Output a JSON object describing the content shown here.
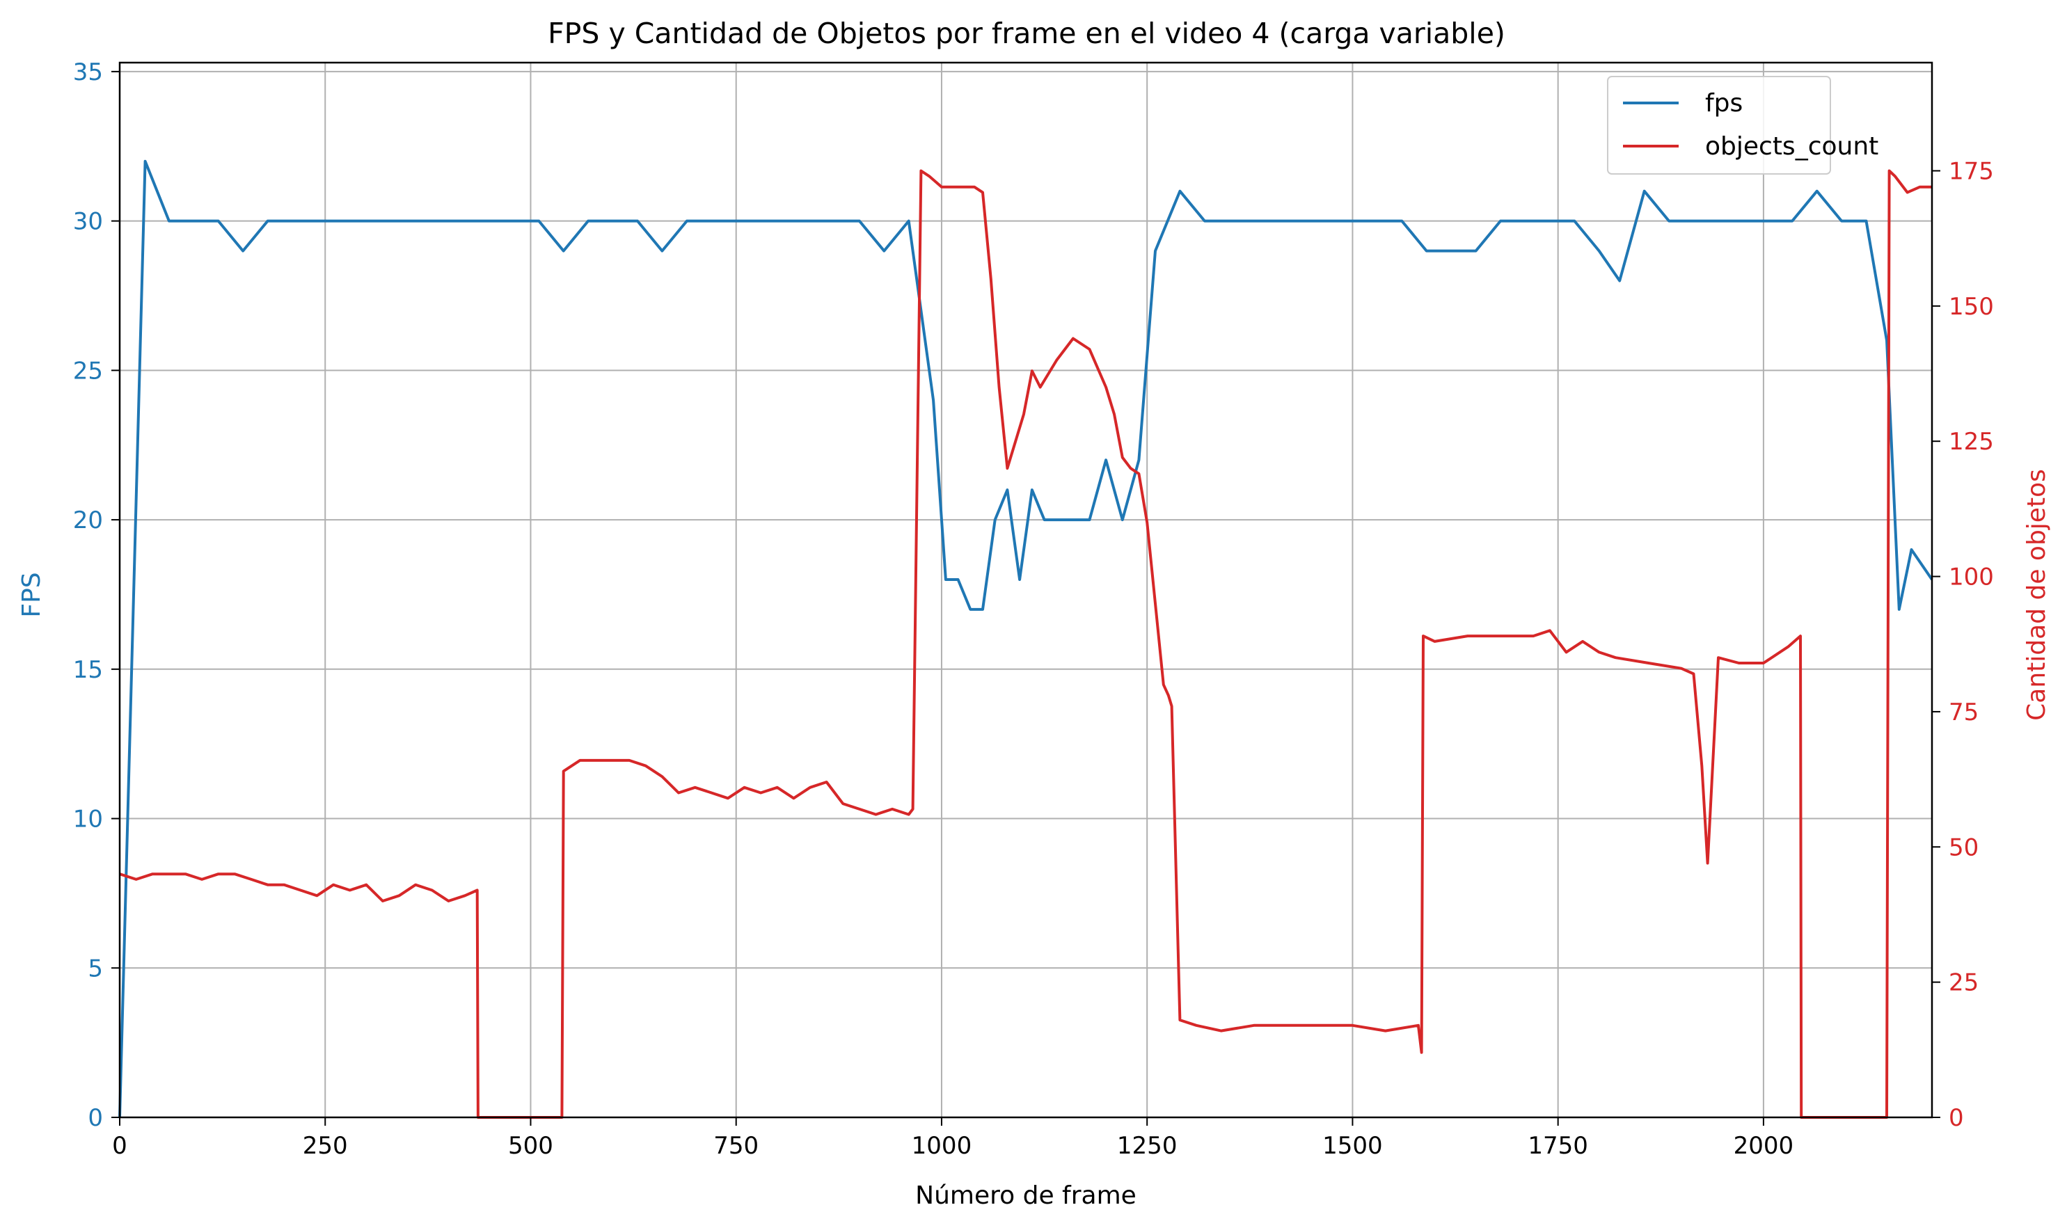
{
  "chart_data": {
    "type": "line",
    "title": "FPS y Cantidad de Objetos por frame en el video 4 (carga variable)",
    "xlabel": "Número de frame",
    "ylabel_left": "FPS",
    "ylabel_right": "Cantidad de objetos",
    "xlim": [
      0,
      2205
    ],
    "ylim_left": [
      0,
      35.3
    ],
    "ylim_right": [
      0,
      195
    ],
    "xticks": [
      "0",
      "250",
      "500",
      "750",
      "1000",
      "1250",
      "1500",
      "1750",
      "2000"
    ],
    "yticks_left": [
      "0",
      "5",
      "10",
      "15",
      "20",
      "25",
      "30",
      "35"
    ],
    "yticks_right": [
      "0",
      "25",
      "50",
      "75",
      "100",
      "125",
      "150",
      "175"
    ],
    "grid": true,
    "legend_position": "top-right",
    "colors": {
      "fps": "#1f77b4",
      "objects_count": "#d62728",
      "grid": "#b0b0b0",
      "axes": "#000000"
    },
    "series": [
      {
        "name": "fps",
        "axis": "left",
        "x": [
          0,
          31,
          60,
          90,
          120,
          150,
          180,
          210,
          240,
          270,
          300,
          330,
          360,
          390,
          420,
          450,
          480,
          510,
          540,
          570,
          600,
          630,
          660,
          690,
          720,
          750,
          780,
          810,
          840,
          870,
          900,
          930,
          960,
          990,
          1005,
          1020,
          1035,
          1050,
          1065,
          1080,
          1095,
          1110,
          1125,
          1140,
          1160,
          1180,
          1200,
          1220,
          1240,
          1260,
          1290,
          1320,
          1350,
          1380,
          1410,
          1440,
          1470,
          1500,
          1530,
          1560,
          1590,
          1620,
          1650,
          1680,
          1710,
          1740,
          1770,
          1800,
          1825,
          1855,
          1885,
          1915,
          1945,
          1975,
          2005,
          2035,
          2065,
          2095,
          2125,
          2150,
          2165,
          2180,
          2205
        ],
        "values": [
          0,
          32,
          30,
          30,
          30,
          29,
          30,
          30,
          30,
          30,
          30,
          30,
          30,
          30,
          30,
          30,
          30,
          30,
          29,
          30,
          30,
          30,
          29,
          30,
          30,
          30,
          30,
          30,
          30,
          30,
          30,
          29,
          30,
          24,
          18,
          18,
          17,
          17,
          20,
          21,
          18,
          21,
          20,
          20,
          20,
          20,
          22,
          20,
          22,
          29,
          31,
          30,
          30,
          30,
          30,
          30,
          30,
          30,
          30,
          30,
          29,
          29,
          29,
          30,
          30,
          30,
          30,
          29,
          28,
          31,
          30,
          30,
          30,
          30,
          30,
          30,
          31,
          30,
          30,
          26,
          17,
          19,
          18
        ]
      },
      {
        "name": "objects_count",
        "axis": "right",
        "x": [
          0,
          20,
          40,
          60,
          80,
          100,
          120,
          140,
          160,
          180,
          200,
          220,
          240,
          260,
          280,
          300,
          320,
          340,
          360,
          380,
          400,
          420,
          435,
          436,
          500,
          538,
          540,
          560,
          580,
          600,
          620,
          640,
          660,
          680,
          700,
          720,
          740,
          760,
          780,
          800,
          820,
          840,
          860,
          880,
          900,
          920,
          940,
          960,
          965,
          975,
          985,
          1000,
          1020,
          1040,
          1050,
          1060,
          1070,
          1080,
          1090,
          1100,
          1110,
          1120,
          1140,
          1160,
          1180,
          1200,
          1210,
          1220,
          1230,
          1240,
          1250,
          1260,
          1270,
          1276,
          1280,
          1290,
          1310,
          1340,
          1380,
          1420,
          1460,
          1500,
          1540,
          1580,
          1584,
          1586,
          1600,
          1640,
          1680,
          1720,
          1740,
          1760,
          1780,
          1800,
          1820,
          1860,
          1900,
          1915,
          1925,
          1932,
          1945,
          1970,
          2000,
          2030,
          2045,
          2046,
          2150,
          2153,
          2160,
          2175,
          2190,
          2205
        ],
        "values": [
          45,
          44,
          45,
          45,
          45,
          44,
          45,
          45,
          44,
          43,
          43,
          42,
          41,
          43,
          42,
          43,
          40,
          41,
          43,
          42,
          40,
          41,
          42,
          0,
          0,
          0,
          64,
          66,
          66,
          66,
          66,
          65,
          63,
          60,
          61,
          60,
          59,
          61,
          60,
          61,
          59,
          61,
          62,
          58,
          57,
          56,
          57,
          56,
          57,
          175,
          174,
          172,
          172,
          172,
          171,
          155,
          135,
          120,
          125,
          130,
          138,
          135,
          140,
          144,
          142,
          135,
          130,
          122,
          120,
          119,
          110,
          95,
          80,
          78,
          76,
          18,
          17,
          16,
          17,
          17,
          17,
          17,
          16,
          17,
          12,
          89,
          88,
          89,
          89,
          89,
          90,
          86,
          88,
          86,
          85,
          84,
          83,
          82,
          65,
          47,
          85,
          84,
          84,
          87,
          89,
          0,
          0,
          175,
          174,
          171,
          172,
          172
        ]
      }
    ]
  }
}
